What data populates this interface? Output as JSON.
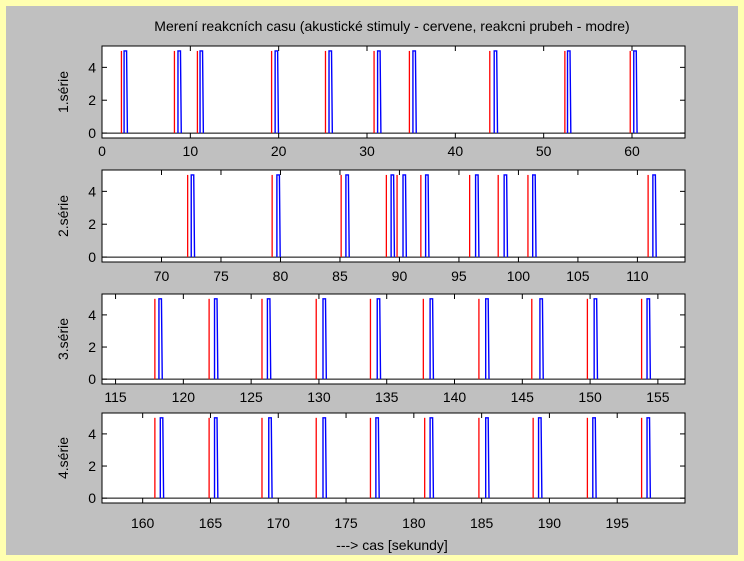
{
  "title": "Merení reakcních casu (akustické stimuly - cervene, reakcni prubeh - modre)",
  "xlabel": "---> cas [sekundy]",
  "colors": {
    "stimulus": "#ff0000",
    "response": "#0000ff",
    "figure_bg": "#c0c0c0",
    "page_bg": "#ffffb0",
    "axes_bg": "#ffffff"
  },
  "chart_data": [
    {
      "type": "line",
      "ylabel": "1.série",
      "xlim": [
        0,
        66
      ],
      "ylim": [
        -0.3,
        5.3
      ],
      "xticks": [
        0,
        10,
        20,
        30,
        40,
        50,
        60
      ],
      "yticks": [
        0,
        2,
        4
      ],
      "series": [
        {
          "values": [
            2.2,
            8.2,
            10.8,
            19.2,
            25.3,
            30.8,
            34.8,
            43.9,
            52.4,
            59.8
          ]
        },
        {
          "values": [
            2.5,
            8.6,
            11.1,
            19.6,
            25.7,
            31.2,
            35.2,
            44.4,
            52.7,
            60.2
          ]
        }
      ]
    },
    {
      "type": "line",
      "ylabel": "2.série",
      "xlim": [
        65,
        114
      ],
      "ylim": [
        -0.3,
        5.3
      ],
      "xticks": [
        70,
        75,
        80,
        85,
        90,
        95,
        100,
        105,
        110
      ],
      "yticks": [
        0,
        2,
        4
      ],
      "series": [
        {
          "values": [
            72.2,
            79.3,
            85.1,
            88.9,
            89.8,
            91.8,
            95.9,
            98.3,
            100.8,
            110.9
          ]
        },
        {
          "values": [
            72.5,
            79.7,
            85.5,
            89.3,
            90.3,
            92.2,
            96.4,
            98.8,
            101.2,
            111.3
          ]
        }
      ]
    },
    {
      "type": "line",
      "ylabel": "3.série",
      "xlim": [
        114,
        157
      ],
      "ylim": [
        -0.3,
        5.3
      ],
      "xticks": [
        115,
        120,
        125,
        130,
        135,
        140,
        145,
        150,
        155
      ],
      "yticks": [
        0,
        2,
        4
      ],
      "series": [
        {
          "values": [
            117.9,
            121.9,
            125.8,
            129.8,
            133.8,
            137.7,
            141.8,
            145.7,
            149.8,
            153.8
          ]
        },
        {
          "values": [
            118.2,
            122.3,
            126.2,
            130.3,
            134.3,
            138.2,
            142.3,
            146.3,
            150.3,
            154.2
          ]
        }
      ]
    },
    {
      "type": "line",
      "ylabel": "4.série",
      "xlim": [
        157,
        200
      ],
      "ylim": [
        -0.3,
        5.3
      ],
      "xticks": [
        160,
        165,
        170,
        175,
        180,
        185,
        190,
        195
      ],
      "yticks": [
        0,
        2,
        4
      ],
      "series": [
        {
          "values": [
            160.9,
            164.9,
            168.8,
            172.8,
            176.8,
            180.8,
            184.8,
            188.8,
            192.8,
            196.8
          ]
        },
        {
          "values": [
            161.3,
            165.3,
            169.3,
            173.3,
            177.2,
            181.2,
            185.3,
            189.2,
            193.2,
            197.2
          ]
        }
      ]
    }
  ]
}
